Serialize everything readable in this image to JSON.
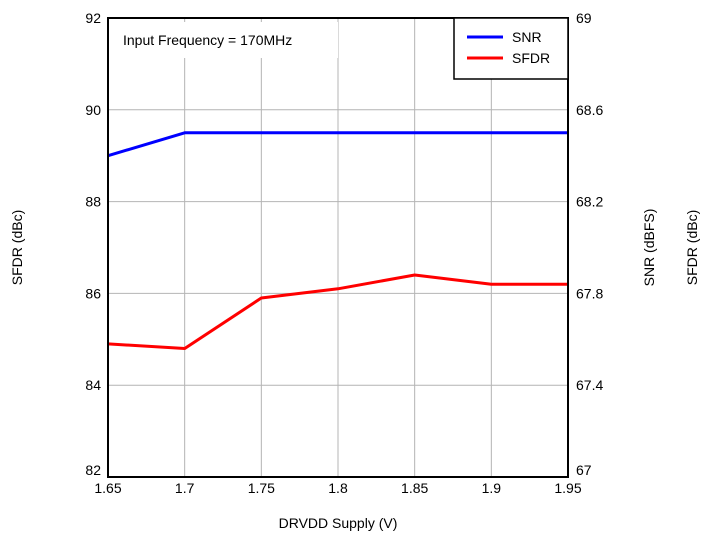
{
  "chart_data": {
    "type": "line",
    "title": "",
    "xlabel": "DRVDD Supply (V)",
    "ylabel_left": "SFDR (dBc)",
    "ylabel_right": "SNR (dBFS)",
    "ylabel_right_extra": "SFDR (dBc)",
    "annotation": "Input Frequency = 170MHz",
    "xlim": [
      1.65,
      1.95
    ],
    "ylim_left": [
      82,
      92
    ],
    "ylim_right": [
      67,
      69
    ],
    "x_ticks": [
      1.65,
      1.7,
      1.75,
      1.8,
      1.85,
      1.9,
      1.95
    ],
    "x_tick_labels": [
      "1.65",
      "1.7",
      "1.75",
      "1.8",
      "1.85",
      "1.9",
      "1.95"
    ],
    "y_left_ticks": [
      82,
      84,
      86,
      88,
      90,
      92
    ],
    "y_left_tick_labels": [
      "82",
      "84",
      "86",
      "88",
      "90",
      "92"
    ],
    "y_right_ticks": [
      67,
      67.4,
      67.8,
      68.2,
      68.6,
      69
    ],
    "y_right_tick_labels": [
      "67",
      "67.4",
      "67.8",
      "68.2",
      "68.6",
      "69"
    ],
    "grid": true,
    "legend_position": "top-right",
    "series": [
      {
        "name": "SNR",
        "axis": "right",
        "color": "#0000ff",
        "x": [
          1.65,
          1.7,
          1.75,
          1.8,
          1.85,
          1.9,
          1.95
        ],
        "y": [
          68.4,
          68.5,
          68.5,
          68.5,
          68.5,
          68.5,
          68.5
        ]
      },
      {
        "name": "SFDR",
        "axis": "left",
        "color": "#ff0000",
        "x": [
          1.65,
          1.7,
          1.75,
          1.8,
          1.85,
          1.9,
          1.95
        ],
        "y": [
          84.9,
          84.8,
          85.9,
          86.1,
          86.4,
          86.2,
          86.2
        ]
      }
    ]
  }
}
